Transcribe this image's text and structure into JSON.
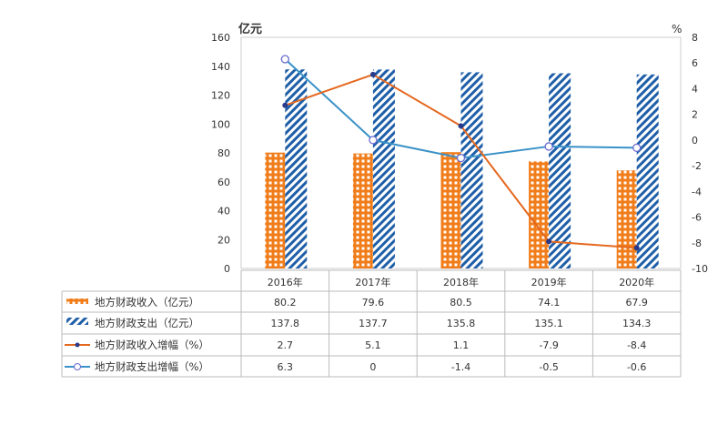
{
  "chart_data": {
    "type": "bar",
    "categories": [
      "2016年",
      "2017年",
      "2018年",
      "2019年",
      "2020年"
    ],
    "left_axis": {
      "label": "亿元",
      "ylim": [
        0,
        160
      ],
      "ticks": [
        0,
        20,
        40,
        60,
        80,
        100,
        120,
        140,
        160
      ]
    },
    "right_axis": {
      "label": "%",
      "ylim": [
        -10,
        8
      ],
      "ticks": [
        -10,
        -8,
        -6,
        -4,
        -2,
        0,
        2,
        4,
        6,
        8
      ]
    },
    "series": [
      {
        "name": "地方财政收入（亿元）",
        "type": "bar",
        "axis": "left",
        "color": "#f07c1a",
        "values": [
          80.2,
          79.6,
          80.5,
          74.1,
          67.9
        ]
      },
      {
        "name": "地方财政支出（亿元）",
        "type": "bar",
        "axis": "left",
        "color": "#1f5fa8",
        "values": [
          137.8,
          137.7,
          135.8,
          135.1,
          134.3
        ]
      },
      {
        "name": "地方财政收入增幅（%）",
        "type": "line",
        "axis": "right",
        "color": "#e4681f",
        "values": [
          2.7,
          5.1,
          1.1,
          -7.9,
          -8.4
        ]
      },
      {
        "name": "地方财政支出增幅（%）",
        "type": "line",
        "axis": "right",
        "color": "#3a92c8",
        "values": [
          6.3,
          0,
          -1.4,
          -0.5,
          -0.6
        ]
      }
    ],
    "table": {
      "display": [
        "80.2",
        "79.6",
        "80.5",
        "74.1",
        "67.9"
      ]
    },
    "grid": false,
    "legend": "data-table"
  }
}
